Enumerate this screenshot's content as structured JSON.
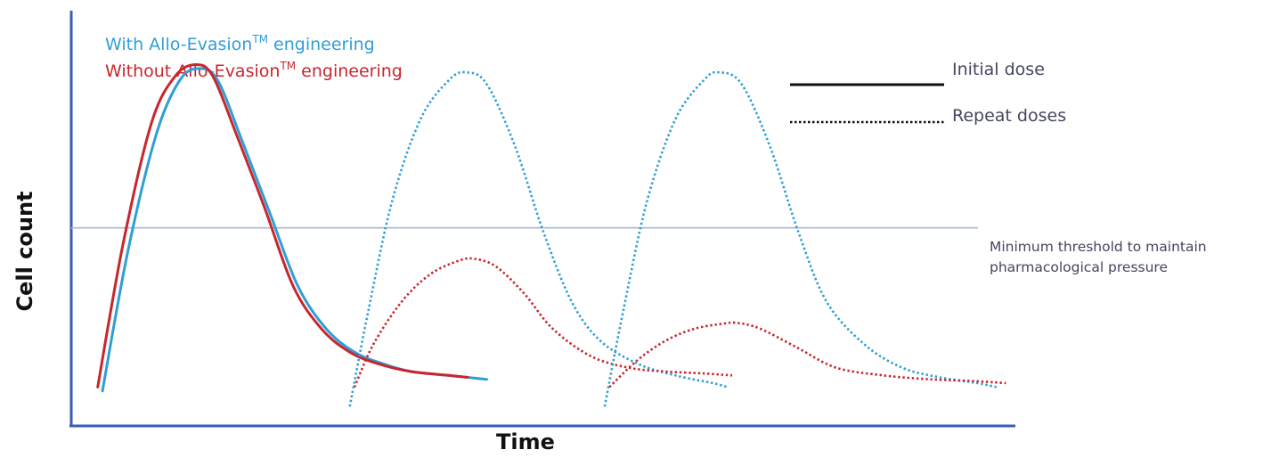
{
  "colors": {
    "with": "#2e9fd6",
    "without": "#c8262e",
    "axis": "#3d5bb5",
    "threshold": "#a9b9d8",
    "text": "#44475e"
  },
  "legend": {
    "with_prefix": "With Allo-Evasion",
    "with_sup": "TM",
    "with_suffix": " engineering",
    "without_prefix": "Without Allo-Evasion",
    "without_sup": "TM",
    "without_suffix": " engineering"
  },
  "key": {
    "initial": "Initial dose",
    "repeat": "Repeat doses"
  },
  "threshold": {
    "line1": "Minimum threshold to maintain",
    "line2": "pharmacological pressure"
  },
  "chart_data": {
    "type": "line",
    "xlabel": "Time",
    "ylabel": "Cell count",
    "xlim": [
      0,
      100
    ],
    "ylim": [
      0,
      100
    ],
    "grid": false,
    "threshold_value": 51,
    "series": [
      {
        "name": "With Allo-Evasion engineering",
        "color": "#2e9fd6",
        "style": "solid",
        "dose": "initial",
        "x": [
          3.3,
          6,
          9,
          11.5,
          13.6,
          15.5,
          18,
          21,
          24,
          27,
          30,
          33,
          36,
          40,
          44
        ],
        "y": [
          9,
          45,
          75,
          89,
          92,
          89,
          74,
          55,
          36,
          25,
          19,
          16,
          14,
          13,
          12
        ]
      },
      {
        "name": "Without Allo-Evasion engineering",
        "color": "#c8262e",
        "style": "solid",
        "dose": "initial",
        "x": [
          2.8,
          5.5,
          8.5,
          11,
          13.2,
          15,
          17.5,
          20.5,
          23.5,
          26.5,
          29.5,
          32.5,
          36,
          40,
          42
        ],
        "y": [
          10,
          47,
          78,
          90,
          93,
          90,
          75,
          56,
          36,
          25,
          19,
          16,
          14,
          13,
          12.5
        ]
      },
      {
        "name": "With Allo-Evasion engineering",
        "color": "#2e9fd6",
        "style": "dotted",
        "dose": "repeat",
        "x": [
          29.5,
          31.5,
          34,
          37,
          40,
          41.8,
          44,
          47,
          50,
          53,
          56,
          60,
          64,
          68,
          69.5
        ],
        "y": [
          5,
          30,
          58,
          79,
          89,
          91,
          88,
          72,
          50,
          32,
          22,
          16,
          13,
          11,
          10
        ]
      },
      {
        "name": "Without Allo-Evasion engineering",
        "color": "#c8262e",
        "style": "dotted",
        "dose": "repeat",
        "x": [
          30,
          32,
          35,
          38,
          41,
          42.7,
          45,
          48,
          51,
          55,
          59,
          63,
          67,
          70
        ],
        "y": [
          10,
          21,
          32,
          39,
          42.5,
          43,
          41,
          34,
          25,
          18,
          15,
          14,
          13.5,
          13
        ]
      },
      {
        "name": "With Allo-Evasion engineering",
        "color": "#2e9fd6",
        "style": "dotted",
        "dose": "repeat",
        "x": [
          56.5,
          58.5,
          61,
          64,
          67,
          68.6,
          71,
          74,
          77,
          80,
          84,
          88,
          92,
          96,
          98
        ],
        "y": [
          5,
          30,
          58,
          79,
          89,
          91,
          88,
          72,
          50,
          32,
          21,
          15,
          12.5,
          11,
          10
        ]
      },
      {
        "name": "Without Allo-Evasion engineering",
        "color": "#c8262e",
        "style": "dotted",
        "dose": "repeat",
        "x": [
          57,
          60,
          63,
          66,
          69,
          70.6,
          73,
          77,
          81,
          86,
          91,
          96,
          99
        ],
        "y": [
          10,
          17,
          22,
          25,
          26.3,
          26.5,
          25,
          20,
          15,
          13,
          12,
          11.5,
          11
        ]
      }
    ]
  }
}
